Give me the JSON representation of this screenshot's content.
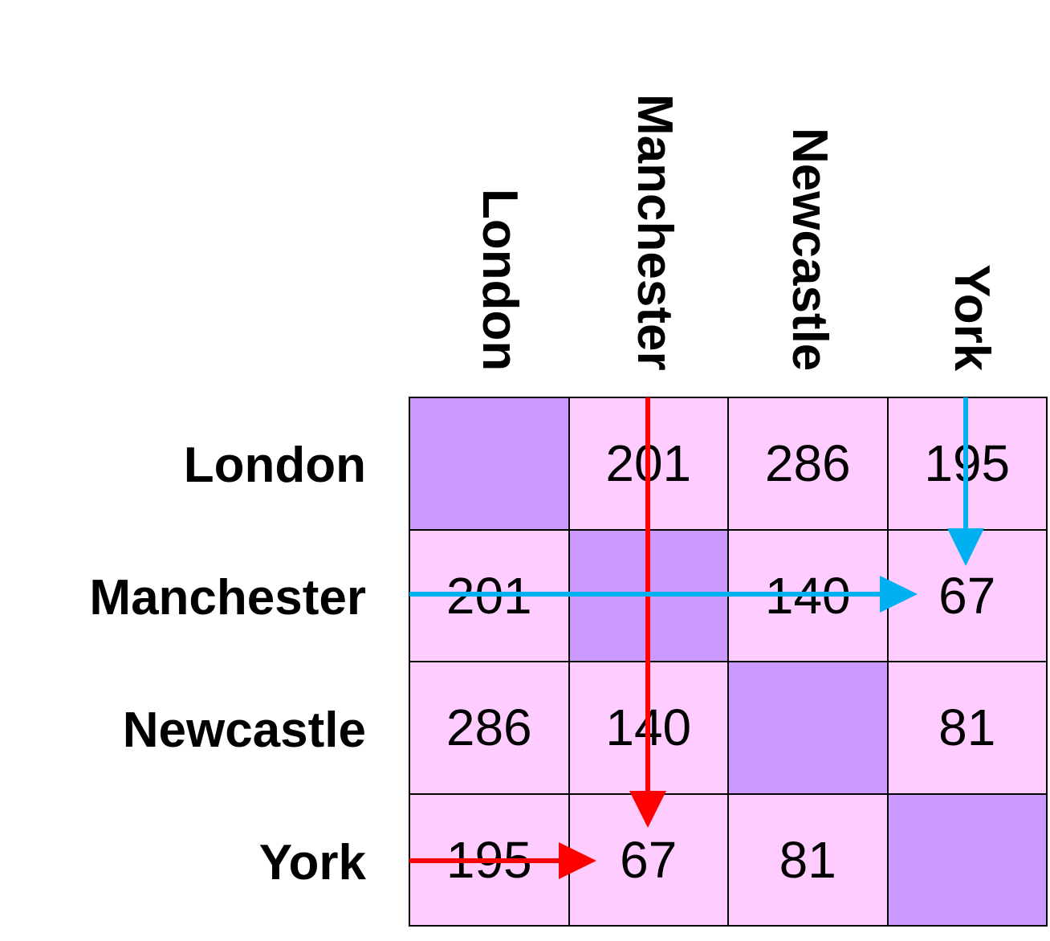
{
  "cities": [
    "London",
    "Manchester",
    "Newcastle",
    "York"
  ],
  "distances": [
    [
      "",
      "201",
      "286",
      "195"
    ],
    [
      "201",
      "",
      "140",
      "67"
    ],
    [
      "286",
      "140",
      "",
      "81"
    ],
    [
      "195",
      "67",
      "81",
      ""
    ]
  ],
  "colors": {
    "cell": "#ffccff",
    "diagonal": "#cc99ff",
    "red_arrow": "#ff0000",
    "blue_arrow": "#00b0f0"
  }
}
